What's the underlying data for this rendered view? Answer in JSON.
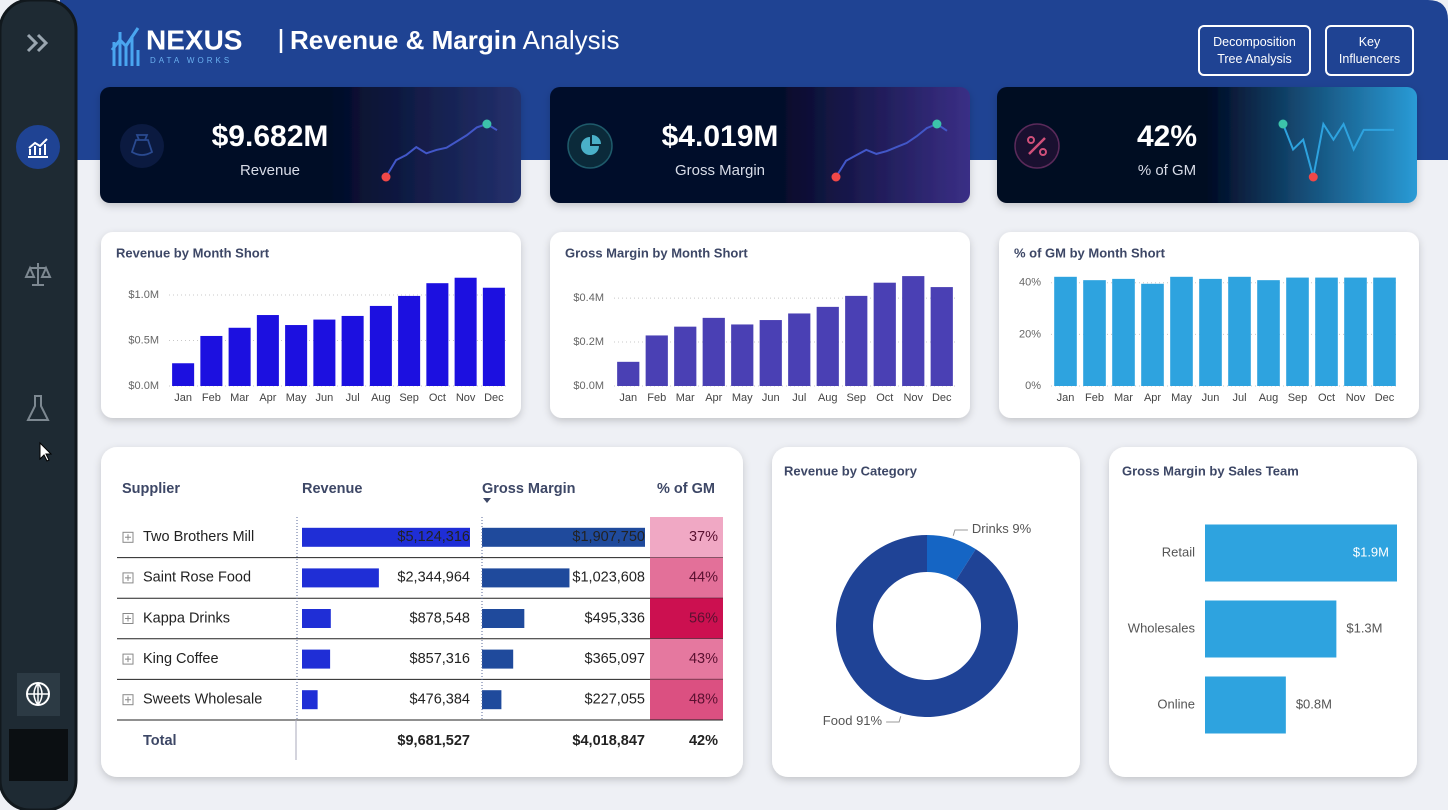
{
  "header": {
    "logo": "NEXUS",
    "tagline": "DATA WORKS",
    "title": "Revenue & Margin",
    "title_suffix": "Analysis"
  },
  "buttons": [
    "Decomposition Tree Analysis",
    "Key Influencers"
  ],
  "kpis": [
    {
      "value": "$9.682M",
      "label": "Revenue"
    },
    {
      "value": "$4.019M",
      "label": "Gross Margin"
    },
    {
      "value": "42%",
      "label": "% of GM"
    }
  ],
  "chart_data": [
    {
      "type": "bar",
      "title": "Revenue by Month Short",
      "categories": [
        "Jan",
        "Feb",
        "Mar",
        "Apr",
        "May",
        "Jun",
        "Jul",
        "Aug",
        "Sep",
        "Oct",
        "Nov",
        "Dec"
      ],
      "values": [
        250000,
        550000,
        640000,
        780000,
        670000,
        730000,
        770000,
        880000,
        990000,
        1130000,
        1190000,
        1080000
      ],
      "color": "#1c10e0",
      "ylim": [
        0,
        1220000
      ],
      "yticks": [
        {
          "value": 0,
          "label": "$0.0M"
        },
        {
          "value": 500000,
          "label": "$0.5M"
        },
        {
          "value": 1000000,
          "label": "$1.0M"
        }
      ],
      "grid": true
    },
    {
      "type": "bar",
      "title": "Gross Margin by Month Short",
      "categories": [
        "Jan",
        "Feb",
        "Mar",
        "Apr",
        "May",
        "Jun",
        "Jul",
        "Aug",
        "Sep",
        "Oct",
        "Nov",
        "Dec"
      ],
      "values": [
        110000,
        230000,
        270000,
        310000,
        280000,
        300000,
        330000,
        360000,
        410000,
        470000,
        500000,
        450000
      ],
      "color": "#4a40b4",
      "ylim": [
        0,
        505000
      ],
      "yticks": [
        {
          "value": 0,
          "label": "$0.0M"
        },
        {
          "value": 200000,
          "label": "$0.2M"
        },
        {
          "value": 400000,
          "label": "$0.4M"
        }
      ],
      "grid": true
    },
    {
      "type": "bar",
      "title": "% of GM by Month Short",
      "categories": [
        "Jan",
        "Feb",
        "Mar",
        "Apr",
        "May",
        "Jun",
        "Jul",
        "Aug",
        "Sep",
        "Oct",
        "Nov",
        "Dec"
      ],
      "values": [
        42.3,
        41,
        41.5,
        39.6,
        42.3,
        41.5,
        42.3,
        41,
        42,
        42,
        42,
        42
      ],
      "color": "#2ea3df",
      "ylim": [
        0,
        43
      ],
      "yticks": [
        {
          "value": 0,
          "label": "0%"
        },
        {
          "value": 20,
          "label": "20%"
        },
        {
          "value": 40,
          "label": "40%"
        }
      ],
      "grid": true
    },
    {
      "type": "donut",
      "title": "Revenue by Category",
      "categories": [
        "Drinks",
        "Food"
      ],
      "values": [
        9,
        91
      ],
      "value_labels": [
        "9%",
        "91%"
      ],
      "colors": [
        "#1565c4",
        "#1f4396"
      ]
    },
    {
      "type": "hbar",
      "title": "Gross Margin by Sales Team",
      "categories": [
        "Retail",
        "Wholesales",
        "Online"
      ],
      "values": [
        1.9,
        1.3,
        0.8
      ],
      "value_labels": [
        "$1.9M",
        "$1.3M",
        "$0.8M"
      ],
      "color": "#2ea3df"
    }
  ],
  "table": {
    "columns": [
      "Supplier",
      "Revenue",
      "Gross Margin",
      "% of GM"
    ],
    "rows": [
      {
        "supplier": "Two Brothers Mill",
        "revenue": 5124316,
        "revenue_label": "$5,124,316",
        "gross_margin": 1907750,
        "gross_margin_label": "$1,907,750",
        "pct": 37,
        "pct_label": "37%"
      },
      {
        "supplier": "Saint Rose Food",
        "revenue": 2344964,
        "revenue_label": "$2,344,964",
        "gross_margin": 1023608,
        "gross_margin_label": "$1,023,608",
        "pct": 44,
        "pct_label": "44%"
      },
      {
        "supplier": "Kappa Drinks",
        "revenue": 878548,
        "revenue_label": "$878,548",
        "gross_margin": 495336,
        "gross_margin_label": "$495,336",
        "pct": 56,
        "pct_label": "56%"
      },
      {
        "supplier": "King Coffee",
        "revenue": 857316,
        "revenue_label": "$857,316",
        "gross_margin": 365097,
        "gross_margin_label": "$365,097",
        "pct": 43,
        "pct_label": "43%"
      },
      {
        "supplier": "Sweets Wholesale",
        "revenue": 476384,
        "revenue_label": "$476,384",
        "gross_margin": 227055,
        "gross_margin_label": "$227,055",
        "pct": 48,
        "pct_label": "48%"
      }
    ],
    "total": {
      "label": "Total",
      "revenue": "$9,681,527",
      "gross_margin": "$4,018,847",
      "pct": "42%"
    }
  }
}
